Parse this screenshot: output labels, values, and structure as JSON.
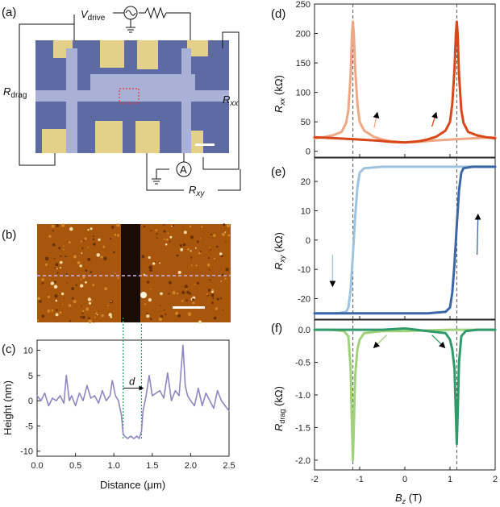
{
  "panels": {
    "a": {
      "label": "(a)",
      "v_drive": "V",
      "v_drive_sub": "drive",
      "r_drag": "R",
      "r_drag_sub": "drag",
      "r_xx": "R",
      "r_xx_sub": "xx",
      "r_xy": "R",
      "r_xy_sub": "xy",
      "ammeter": "A"
    },
    "b": {
      "label": "(b)"
    },
    "c": {
      "label": "(c)",
      "d_label": "d"
    },
    "d": {
      "label": "(d)"
    },
    "e": {
      "label": "(e)"
    },
    "f": {
      "label": "(f)"
    }
  },
  "colors": {
    "d_sweep_up": "#f0a785",
    "d_sweep_down": "#d9481a",
    "e_sweep_up": "#9dc3e0",
    "e_sweep_down": "#3b67a8",
    "f_sweep_up": "#9fd27b",
    "f_sweep_down": "#2f9a6a",
    "c_profile": "#8e85c2",
    "c_trench": "#4a7fb0",
    "afm_dark": "#1a0c02",
    "afm_mid": "#a8560c"
  },
  "chart_data": [
    {
      "id": "c",
      "type": "line",
      "xlabel": "Distance (μm)",
      "ylabel": "Height (nm)",
      "xlim": [
        0,
        2.5
      ],
      "ylim": [
        -11,
        12
      ],
      "xticks": [
        "0.0",
        "0.5",
        "1.0",
        "1.5",
        "2.0",
        "2.5"
      ],
      "yticks": [
        "10",
        "5",
        "0",
        "-5",
        "-10"
      ],
      "series": [
        {
          "x": [
            0.0,
            0.05,
            0.1,
            0.15,
            0.2,
            0.25,
            0.3,
            0.35,
            0.38,
            0.42,
            0.45,
            0.5,
            0.55,
            0.6,
            0.65,
            0.7,
            0.75,
            0.8,
            0.85,
            0.9,
            0.95,
            0.98,
            1.02,
            1.06,
            1.1,
            1.12,
            1.14,
            1.18,
            1.22,
            1.26,
            1.3,
            1.33,
            1.36,
            1.38,
            1.42,
            1.46,
            1.5,
            1.55,
            1.6,
            1.65,
            1.7,
            1.75,
            1.8,
            1.85,
            1.9,
            1.93,
            1.96,
            2.0,
            2.05,
            2.1,
            2.15,
            2.2,
            2.25,
            2.3,
            2.35,
            2.4,
            2.45,
            2.5
          ],
          "y": [
            1.0,
            0.0,
            1.5,
            -1.0,
            0.5,
            0.0,
            1.0,
            -0.5,
            5.0,
            0.0,
            1.0,
            -1.0,
            1.5,
            0.0,
            3.0,
            0.5,
            1.0,
            -0.5,
            2.0,
            0.0,
            1.0,
            4.0,
            1.0,
            0.0,
            -3.0,
            -6.5,
            -7.0,
            -7.5,
            -7.0,
            -7.5,
            -7.0,
            -7.5,
            -6.0,
            -2.0,
            1.0,
            5.0,
            1.0,
            1.5,
            2.0,
            0.5,
            5.5,
            0.0,
            2.0,
            1.0,
            11.0,
            3.0,
            1.0,
            0.0,
            -1.0,
            2.5,
            -1.0,
            1.5,
            0.0,
            -1.5,
            2.0,
            0.0,
            -1.0,
            -2.0
          ]
        }
      ],
      "d_markers_x": [
        1.12,
        1.36
      ]
    },
    {
      "id": "d",
      "type": "line",
      "xlabel": "",
      "ylabel": "Rxx (kΩ)",
      "xlim": [
        -2,
        2
      ],
      "ylim": [
        -10,
        250
      ],
      "yticks": [
        "250",
        "200",
        "150",
        "100",
        "50",
        "0"
      ],
      "dashed_x": [
        -1.15,
        1.15
      ],
      "series": [
        {
          "x": [
            -2.0,
            -1.8,
            -1.6,
            -1.4,
            -1.3,
            -1.25,
            -1.2,
            -1.17,
            -1.15,
            -1.13,
            -1.1,
            -1.05,
            -1.0,
            -0.9,
            -0.7,
            -0.5,
            -0.3,
            0.0,
            0.3,
            0.6,
            1.0,
            1.5,
            2.0
          ],
          "y": [
            22,
            24,
            27,
            33,
            48,
            70,
            130,
            200,
            220,
            200,
            140,
            80,
            50,
            35,
            25,
            20,
            17,
            15,
            16,
            18,
            20,
            22,
            24
          ]
        },
        {
          "x": [
            2.0,
            1.8,
            1.6,
            1.4,
            1.3,
            1.25,
            1.2,
            1.17,
            1.15,
            1.13,
            1.1,
            1.05,
            1.0,
            0.9,
            0.7,
            0.5,
            0.3,
            0.0,
            -0.3,
            -0.6,
            -1.0,
            -1.5,
            -2.0
          ],
          "y": [
            22,
            24,
            27,
            33,
            48,
            70,
            130,
            200,
            220,
            200,
            140,
            80,
            50,
            35,
            25,
            20,
            17,
            15,
            16,
            18,
            20,
            22,
            24
          ]
        }
      ]
    },
    {
      "id": "e",
      "type": "line",
      "xlabel": "",
      "ylabel": "Rxy (kΩ)",
      "xlim": [
        -2,
        2
      ],
      "ylim": [
        -27,
        28
      ],
      "yticks": [
        "20",
        "10",
        "0",
        "-10",
        "-20"
      ],
      "dashed_x": [
        -1.15,
        1.15
      ],
      "series": [
        {
          "x": [
            2.0,
            1.5,
            1.0,
            0.0,
            -0.5,
            -0.9,
            -1.0,
            -1.05,
            -1.1,
            -1.15,
            -1.2,
            -1.25,
            -1.3,
            -1.5,
            -2.0
          ],
          "y": [
            25,
            25,
            25,
            25,
            25,
            24.5,
            23,
            18,
            8,
            -5,
            -17,
            -23,
            -24.5,
            -25,
            -25
          ]
        },
        {
          "x": [
            -2.0,
            -1.5,
            -1.0,
            0.0,
            0.5,
            0.9,
            1.0,
            1.05,
            1.1,
            1.15,
            1.2,
            1.25,
            1.3,
            1.5,
            2.0
          ],
          "y": [
            -25,
            -25,
            -25,
            -25,
            -25,
            -24.5,
            -23,
            -18,
            -8,
            5,
            17,
            23,
            24.5,
            25,
            25
          ]
        }
      ]
    },
    {
      "id": "f",
      "type": "line",
      "xlabel": "Bz (T)",
      "ylabel": "Rdrag (kΩ)",
      "xlim": [
        -2,
        2
      ],
      "ylim": [
        -2.15,
        0.15
      ],
      "xticks": [
        "-2",
        "-1",
        "0",
        "1",
        "2"
      ],
      "yticks": [
        "0.0",
        "-0.5",
        "-1.0",
        "-1.5",
        "-2.0"
      ],
      "dashed_x": [
        -1.15,
        1.15
      ],
      "series": [
        {
          "x": [
            -2.0,
            -1.6,
            -1.35,
            -1.25,
            -1.2,
            -1.17,
            -1.15,
            -1.13,
            -1.1,
            -1.05,
            -1.0,
            -0.9,
            -0.5,
            0.0,
            0.5,
            1.0,
            1.5,
            2.0
          ],
          "y": [
            0.0,
            0.0,
            -0.02,
            -0.1,
            -0.6,
            -1.5,
            -2.0,
            -1.5,
            -0.7,
            -0.3,
            -0.15,
            -0.05,
            -0.02,
            -0.02,
            -0.01,
            0.0,
            0.0,
            0.0
          ]
        },
        {
          "x": [
            2.0,
            1.6,
            1.35,
            1.25,
            1.2,
            1.17,
            1.15,
            1.13,
            1.1,
            1.05,
            1.0,
            0.9,
            0.5,
            0.0,
            -0.5,
            -1.0,
            -1.5,
            -2.0
          ],
          "y": [
            0.0,
            0.0,
            -0.02,
            -0.1,
            -0.5,
            -1.3,
            -1.75,
            -1.3,
            -0.6,
            -0.3,
            -0.15,
            -0.05,
            -0.02,
            0.02,
            0.0,
            0.0,
            0.0,
            0.0
          ]
        }
      ]
    }
  ]
}
